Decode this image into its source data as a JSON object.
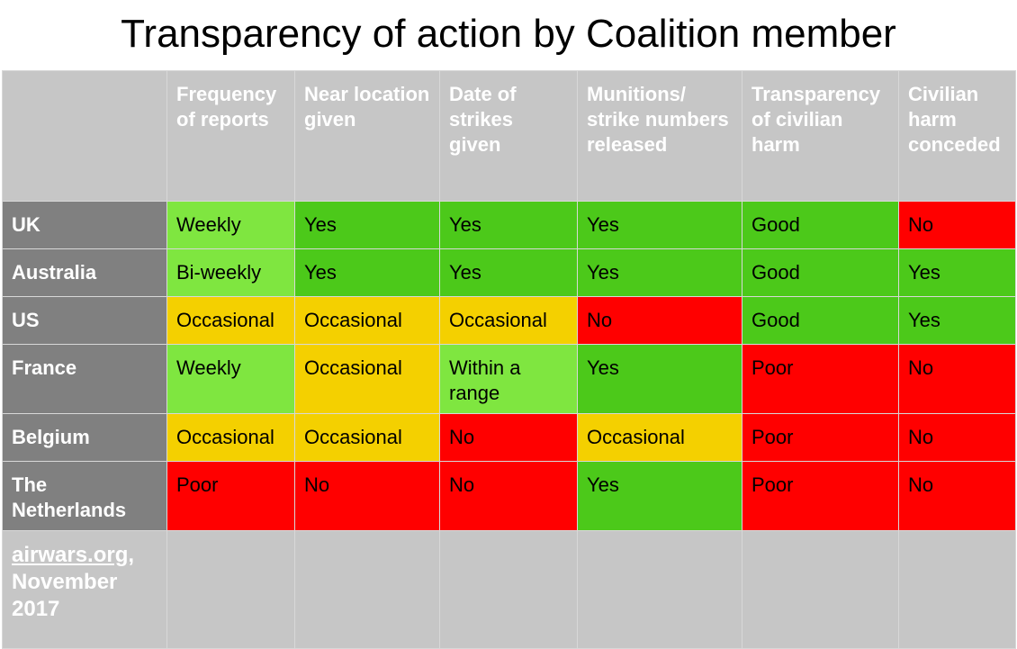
{
  "title": "Transparency of action by Coalition member",
  "colors": {
    "good": "#4cc91a",
    "light": "#7fe640",
    "partial": "#f4d000",
    "bad": "#ff0000",
    "header_bg": "#c6c6c6",
    "row_label_bg": "#808080"
  },
  "chart_data": {
    "type": "table",
    "columns": [
      "Frequency of reports",
      "Near location given",
      "Date of strikes given",
      "Munitions/ strike numbers released",
      "Transparency of civilian harm",
      "Civilian harm conceded"
    ],
    "rows": [
      {
        "country": "UK",
        "cells": [
          {
            "text": "Weekly",
            "level": "light"
          },
          {
            "text": "Yes",
            "level": "good"
          },
          {
            "text": "Yes",
            "level": "good"
          },
          {
            "text": "Yes",
            "level": "good"
          },
          {
            "text": "Good",
            "level": "good"
          },
          {
            "text": "No",
            "level": "bad"
          }
        ]
      },
      {
        "country": "Australia",
        "cells": [
          {
            "text": "Bi-weekly",
            "level": "light"
          },
          {
            "text": "Yes",
            "level": "good"
          },
          {
            "text": "Yes",
            "level": "good"
          },
          {
            "text": "Yes",
            "level": "good"
          },
          {
            "text": "Good",
            "level": "good"
          },
          {
            "text": "Yes",
            "level": "good"
          }
        ]
      },
      {
        "country": "US",
        "cells": [
          {
            "text": "Occasional",
            "level": "partial"
          },
          {
            "text": "Occasional",
            "level": "partial"
          },
          {
            "text": "Occasional",
            "level": "partial"
          },
          {
            "text": "No",
            "level": "bad"
          },
          {
            "text": "Good",
            "level": "good"
          },
          {
            "text": "Yes",
            "level": "good"
          }
        ]
      },
      {
        "country": "France",
        "cells": [
          {
            "text": "Weekly",
            "level": "light"
          },
          {
            "text": "Occasional",
            "level": "partial"
          },
          {
            "text": "Within a range",
            "level": "light"
          },
          {
            "text": "Yes",
            "level": "good"
          },
          {
            "text": "Poor",
            "level": "bad"
          },
          {
            "text": "No",
            "level": "bad"
          }
        ]
      },
      {
        "country": "Belgium",
        "cells": [
          {
            "text": "Occasional",
            "level": "partial"
          },
          {
            "text": "Occasional",
            "level": "partial"
          },
          {
            "text": "No",
            "level": "bad"
          },
          {
            "text": "Occasional",
            "level": "partial"
          },
          {
            "text": "Poor",
            "level": "bad"
          },
          {
            "text": "No",
            "level": "bad"
          }
        ]
      },
      {
        "country": "The Netherlands",
        "cells": [
          {
            "text": "Poor",
            "level": "bad"
          },
          {
            "text": "No",
            "level": "bad"
          },
          {
            "text": "No",
            "level": "bad"
          },
          {
            "text": "Yes",
            "level": "good"
          },
          {
            "text": "Poor",
            "level": "bad"
          },
          {
            "text": "No",
            "level": "bad"
          }
        ]
      }
    ]
  },
  "source": {
    "link_text": "airwars.org",
    "rest": ", November 2017"
  }
}
